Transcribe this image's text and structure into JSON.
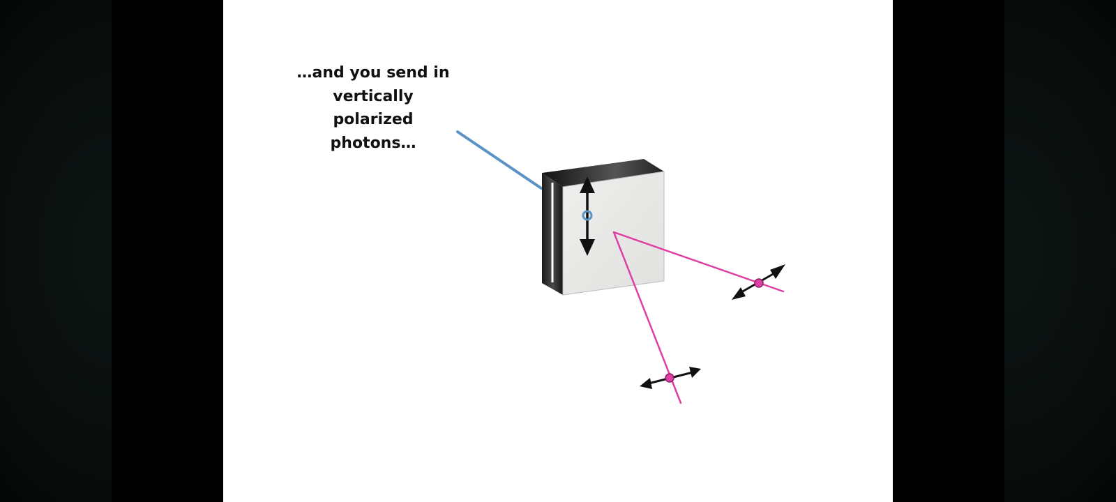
{
  "caption": {
    "lines": [
      "…and you send in",
      "vertically",
      "polarized",
      "photons…"
    ]
  },
  "colors": {
    "incoming_beam": "#5b93c6",
    "outgoing_beam": "#de3fa3",
    "arrow": "#111111",
    "crystal_face": "#e7e8e6",
    "crystal_dark": "#1a1a1a"
  },
  "icons": {
    "incoming_polarization": "vertical-double-arrow-icon",
    "outgoing_polarization": "diagonal-double-arrow-icon"
  }
}
